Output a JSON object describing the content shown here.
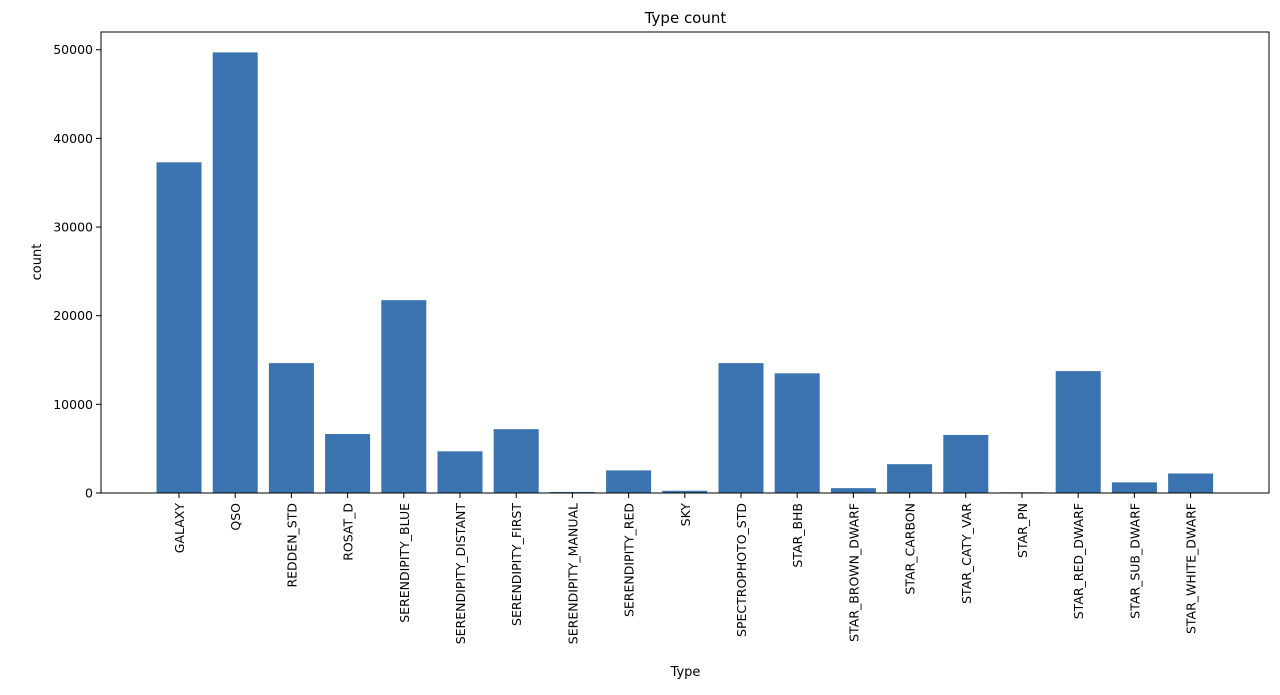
{
  "chart_data": {
    "type": "bar",
    "title": "Type count",
    "xlabel": "Type",
    "ylabel": "count",
    "categories": [
      "GALAXY",
      "QSO",
      "REDDEN_STD",
      "ROSAT_D",
      "SERENDIPITY_BLUE",
      "SERENDIPITY_DISTANT",
      "SERENDIPITY_FIRST",
      "SERENDIPITY_MANUAL",
      "SERENDIPITY_RED",
      "SKY",
      "SPECTROPHOTO_STD",
      "STAR_BHB",
      "STAR_BROWN_DWARF",
      "STAR_CARBON",
      "STAR_CATY_VAR",
      "STAR_PN",
      "STAR_RED_DWARF",
      "STAR_SUB_DWARF",
      "STAR_WHITE_DWARF"
    ],
    "values": [
      37300,
      49700,
      14650,
      6650,
      21750,
      4700,
      7200,
      120,
      2550,
      250,
      14650,
      13500,
      550,
      3250,
      6550,
      80,
      13750,
      1200,
      2200
    ],
    "ylim": [
      0,
      52000
    ],
    "yticks": [
      0,
      10000,
      20000,
      30000,
      40000,
      50000
    ],
    "grid": false,
    "bar_color": "#3b73b0"
  }
}
